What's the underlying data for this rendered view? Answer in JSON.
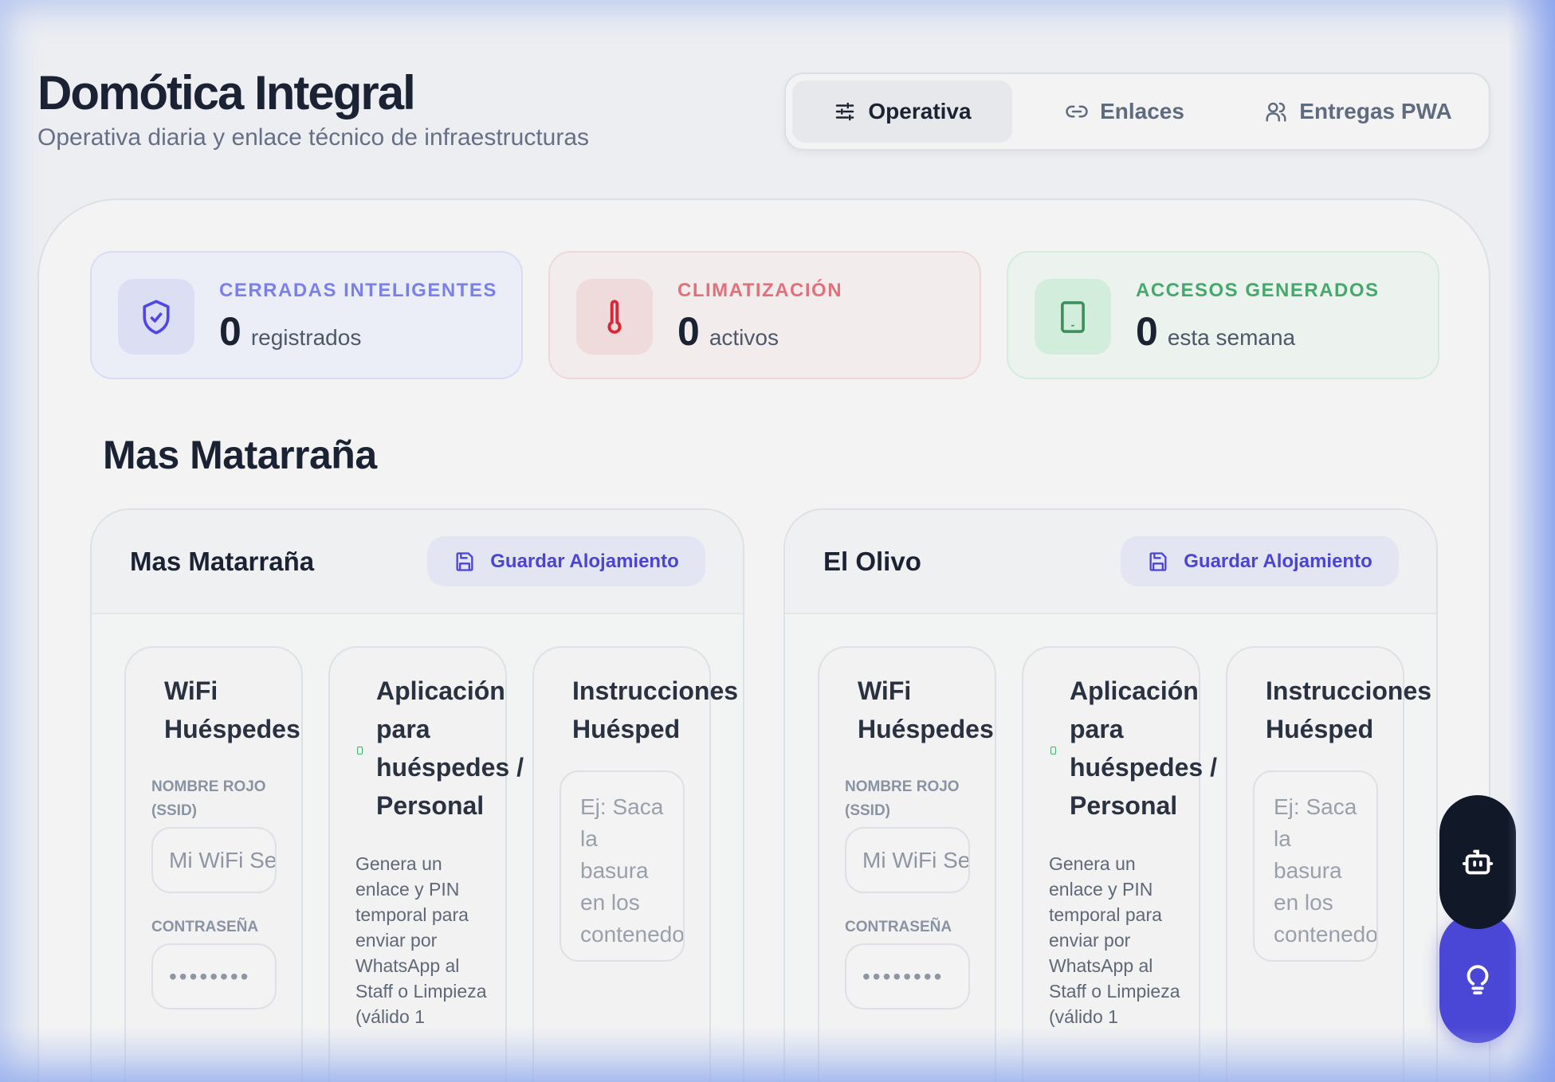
{
  "header": {
    "title": "Domótica Integral",
    "subtitle": "Operativa diaria y enlace técnico de infraestructuras"
  },
  "tabs": [
    {
      "label": "Operativa",
      "icon": "sliders-icon",
      "active": true
    },
    {
      "label": "Enlaces",
      "icon": "link-icon"
    },
    {
      "label": "Entregas PWA",
      "icon": "users-icon"
    }
  ],
  "stats": [
    {
      "label": "CERRADAS INTELIGENTES",
      "value": "0",
      "unit": "registrados",
      "icon": "shield-check-icon",
      "color": "#4f46e5"
    },
    {
      "label": "CLIMATIZACIÓN",
      "value": "0",
      "unit": "activos",
      "icon": "thermometer-icon",
      "color": "#dc2638"
    },
    {
      "label": "ACCESOS GENERADOS",
      "value": "0",
      "unit": "esta semana",
      "icon": "tablet-icon",
      "color": "#3d8f5e"
    }
  ],
  "section_title": "Mas Matarraña",
  "properties": [
    {
      "name": "Mas Matarraña",
      "save_label": "Guardar Alojamiento",
      "wifi": {
        "title": "WiFi Huéspedes",
        "ssid_label": "NOMBRE ROJO (SSID)",
        "ssid_placeholder": "Mi WiFi Seguro",
        "password_label": "CONTRASEÑA",
        "password_value": "••••••••"
      },
      "app": {
        "title": "Aplicación para huéspedes / Personal",
        "description": "Genera un enlace y PIN temporal para enviar por WhatsApp al Staff o Limpieza (válido 1"
      },
      "instructions": {
        "title": "Instrucciones Huésped",
        "placeholder": "Ej: Saca la basura en los contenedores..."
      }
    },
    {
      "name": "El Olivo",
      "save_label": "Guardar Alojamiento",
      "wifi": {
        "title": "WiFi Huéspedes",
        "ssid_label": "NOMBRE ROJO (SSID)",
        "ssid_placeholder": "Mi WiFi Seguro",
        "password_label": "CONTRASEÑA",
        "password_value": "••••••••"
      },
      "app": {
        "title": "Aplicación para huéspedes / Personal",
        "description": "Genera un enlace y PIN temporal para enviar por WhatsApp al Staff o Limpieza (válido 1"
      },
      "instructions": {
        "title": "Instrucciones Huésped",
        "placeholder": "Ej: Saca la basura en los contenedores..."
      }
    }
  ],
  "fabs": [
    {
      "icon": "robot-icon",
      "color": "#111827"
    },
    {
      "icon": "lightbulb-icon",
      "color": "#4a46d6"
    }
  ]
}
